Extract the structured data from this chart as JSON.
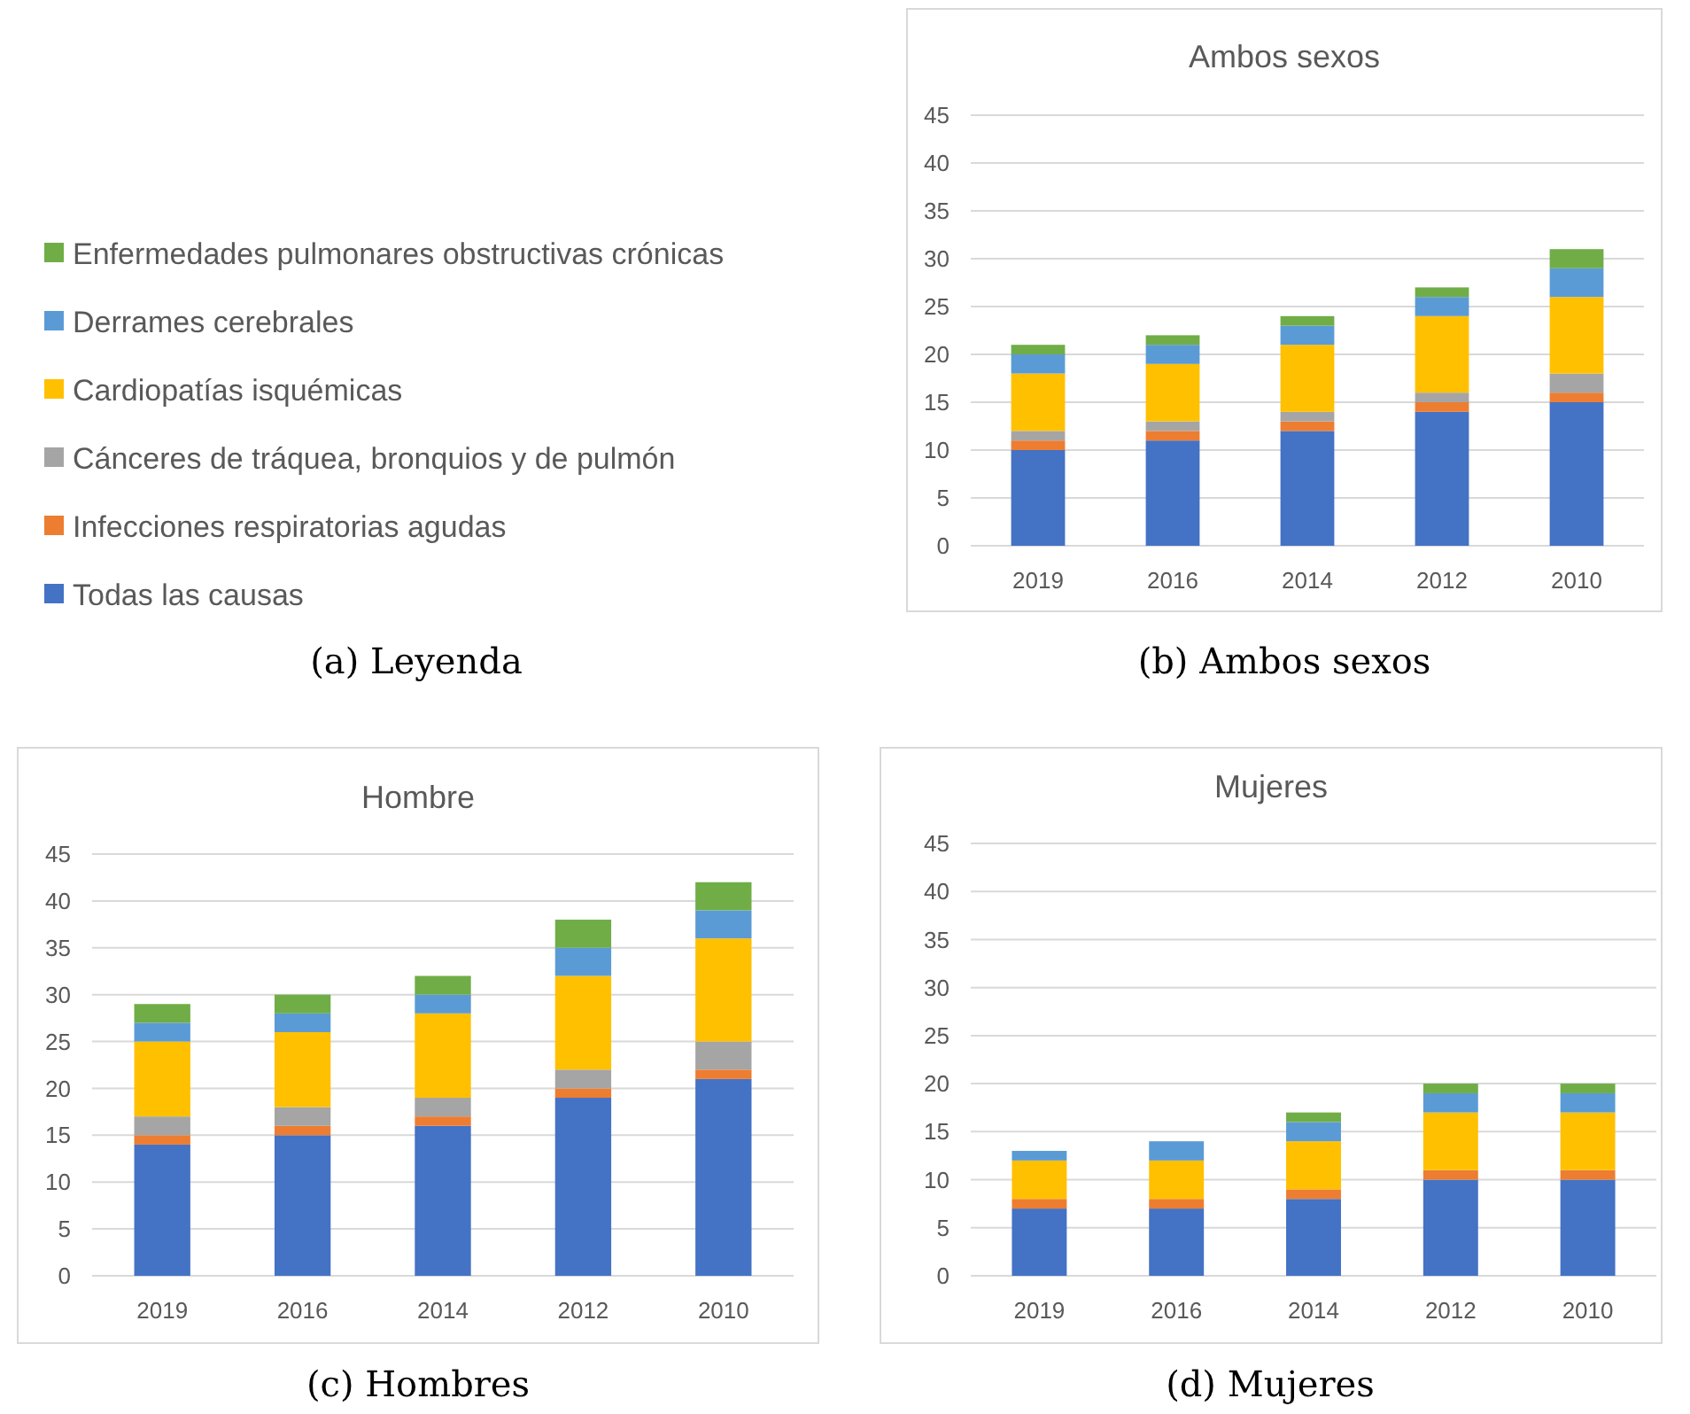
{
  "chart_data": [
    {
      "type": "bar",
      "title": "Ambos sexos",
      "stacked": true,
      "categories": [
        "2019",
        "2016",
        "2014",
        "2012",
        "2010"
      ],
      "ylim": [
        0,
        45
      ],
      "yticks": [
        0,
        5,
        10,
        15,
        20,
        25,
        30,
        35,
        40,
        45
      ],
      "grid": "y",
      "legend": "left",
      "annotations": [
        "(a) Leyenda",
        "(b) Ambos sexos"
      ],
      "series": [
        {
          "name": "Todas las causas",
          "color": "#4472c4",
          "values": [
            10,
            11,
            12,
            14,
            15
          ]
        },
        {
          "name": "Infecciones respiratorias agudas",
          "color": "#ed7d31",
          "values": [
            1,
            1,
            1,
            1,
            1
          ]
        },
        {
          "name": "Cánceres de tráquea, bronquios y de pulmón",
          "color": "#a5a5a5",
          "values": [
            1,
            1,
            1,
            1,
            2
          ]
        },
        {
          "name": "Cardiopatías isquémicas",
          "color": "#ffc000",
          "values": [
            6,
            6,
            7,
            8,
            8
          ]
        },
        {
          "name": "Derrames cerebrales",
          "color": "#5b9bd5",
          "values": [
            2,
            2,
            2,
            2,
            3
          ]
        },
        {
          "name": "Enfermedades pulmonares obstructivas crónicas",
          "color": "#70ad47",
          "values": [
            1,
            1,
            1,
            1,
            2
          ]
        }
      ]
    },
    {
      "type": "bar",
      "title": "Hombre",
      "stacked": true,
      "categories": [
        "2019",
        "2016",
        "2014",
        "2012",
        "2010"
      ],
      "ylim": [
        0,
        45
      ],
      "yticks": [
        0,
        5,
        10,
        15,
        20,
        25,
        30,
        35,
        40,
        45
      ],
      "grid": "y",
      "annotations": [
        "(c) Hombres"
      ],
      "series": [
        {
          "color": "#4472c4",
          "values": [
            14,
            15,
            16,
            19,
            21
          ]
        },
        {
          "color": "#ed7d31",
          "values": [
            1,
            1,
            1,
            1,
            1
          ]
        },
        {
          "color": "#a5a5a5",
          "values": [
            2,
            2,
            2,
            2,
            3
          ]
        },
        {
          "color": "#ffc000",
          "values": [
            8,
            8,
            9,
            10,
            11
          ]
        },
        {
          "color": "#5b9bd5",
          "values": [
            2,
            2,
            2,
            3,
            3
          ]
        },
        {
          "color": "#70ad47",
          "values": [
            2,
            2,
            2,
            3,
            3
          ]
        }
      ]
    },
    {
      "type": "bar",
      "title": "Mujeres",
      "stacked": true,
      "categories": [
        "2019",
        "2016",
        "2014",
        "2012",
        "2010"
      ],
      "ylim": [
        0,
        45
      ],
      "yticks": [
        0,
        5,
        10,
        15,
        20,
        25,
        30,
        35,
        40,
        45
      ],
      "grid": "y",
      "annotations": [
        "(d) Mujeres"
      ],
      "series": [
        {
          "color": "#4472c4",
          "values": [
            7,
            7,
            8,
            10,
            10
          ]
        },
        {
          "color": "#ed7d31",
          "values": [
            1,
            1,
            1,
            1,
            1
          ]
        },
        {
          "color": "#a5a5a5",
          "values": [
            0,
            0,
            0,
            0,
            0
          ]
        },
        {
          "color": "#ffc000",
          "values": [
            4,
            4,
            5,
            6,
            6
          ]
        },
        {
          "color": "#5b9bd5",
          "values": [
            1,
            2,
            2,
            2,
            2
          ]
        },
        {
          "color": "#70ad47",
          "values": [
            0,
            0,
            1,
            1,
            1
          ]
        }
      ]
    }
  ]
}
